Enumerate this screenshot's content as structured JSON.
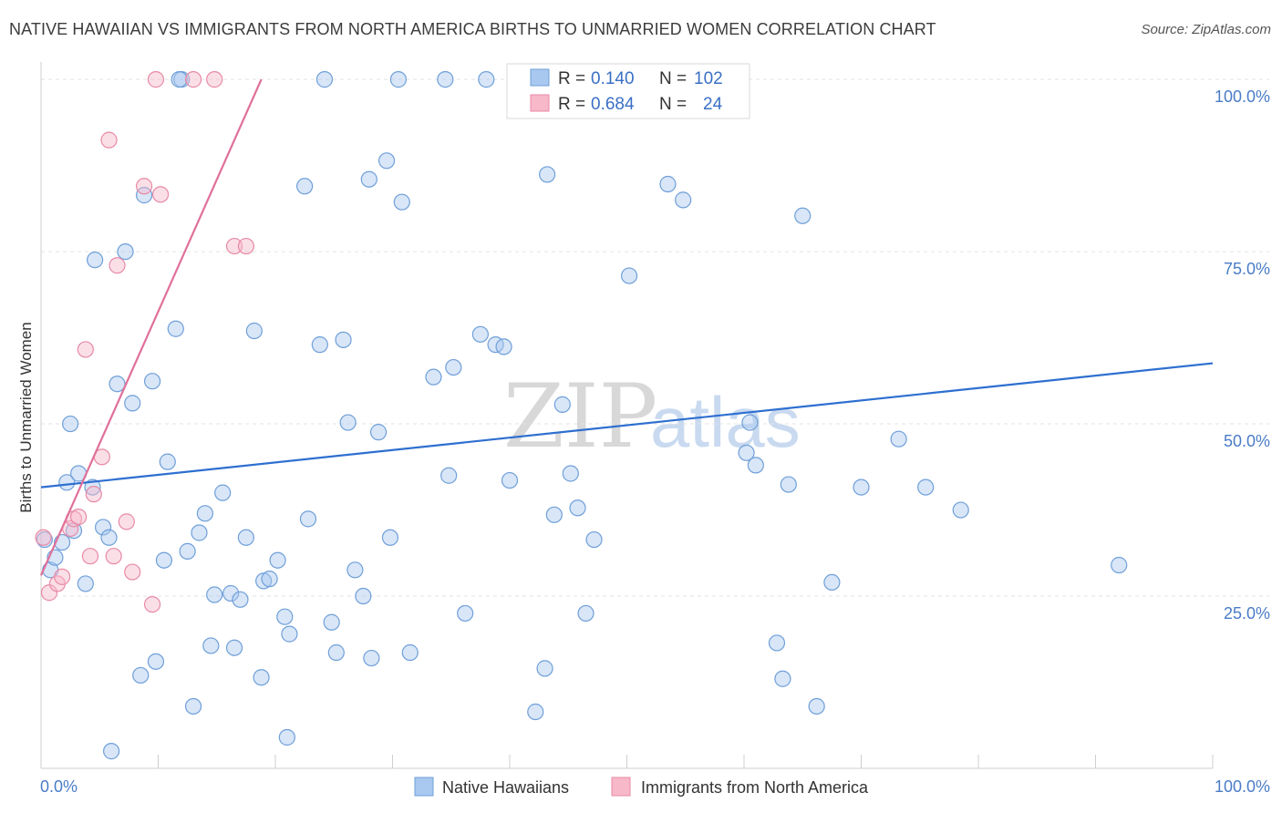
{
  "title": "NATIVE HAWAIIAN VS IMMIGRANTS FROM NORTH AMERICA BIRTHS TO UNMARRIED WOMEN CORRELATION CHART",
  "source": "Source: ZipAtlas.com",
  "watermark": {
    "zip": "ZIP",
    "atlas": "atlas"
  },
  "colors": {
    "blue_fill": "#a8c8f0",
    "blue_stroke": "#6f9fd8",
    "blue_line": "#2e6fd0",
    "pink_fill": "#f7b8c9",
    "pink_stroke": "#e88aa6",
    "pink_line": "#e0709a"
  },
  "legend": {
    "rows": [
      {
        "r_label": "R =",
        "r_value": "0.140",
        "n_label": "N =",
        "n_value": "102"
      },
      {
        "r_label": "R =",
        "r_value": "0.684",
        "n_label": "N =",
        "n_value": "24"
      }
    ]
  },
  "bottom_legend": [
    "Native Hawaiians",
    "Immigrants from North America"
  ],
  "chart_data": {
    "type": "scatter",
    "title": "NATIVE HAWAIIAN VS IMMIGRANTS FROM NORTH AMERICA BIRTHS TO UNMARRIED WOMEN CORRELATION CHART",
    "xlabel": "",
    "ylabel": "Births to Unmarried Women",
    "xlim": [
      0,
      100
    ],
    "ylim": [
      0,
      102
    ],
    "x_tick_labels": [
      "0.0%",
      "100.0%"
    ],
    "y_ticks": [
      25,
      50,
      75,
      100
    ],
    "y_tick_labels": [
      "25.0%",
      "50.0%",
      "75.0%",
      "100.0%"
    ],
    "series": [
      {
        "name": "Native Hawaiians",
        "r": 0.14,
        "n": 102,
        "trend": {
          "x": [
            0,
            100
          ],
          "y": [
            40.8,
            58.8
          ]
        },
        "points": [
          [
            0.3,
            33.2
          ],
          [
            0.8,
            28.8
          ],
          [
            1.2,
            30.6
          ],
          [
            1.8,
            32.8
          ],
          [
            2.2,
            41.5
          ],
          [
            2.8,
            34.5
          ],
          [
            3.2,
            42.8
          ],
          [
            3.8,
            26.8
          ],
          [
            4.4,
            40.8
          ],
          [
            5.3,
            35.0
          ],
          [
            5.8,
            33.5
          ],
          [
            4.6,
            73.8
          ],
          [
            7.2,
            75.0
          ],
          [
            6.5,
            55.8
          ],
          [
            7.8,
            53.0
          ],
          [
            8.8,
            83.2
          ],
          [
            9.5,
            56.2
          ],
          [
            8.5,
            13.5
          ],
          [
            9.8,
            15.5
          ],
          [
            10.5,
            30.2
          ],
          [
            10.8,
            44.5
          ],
          [
            11.5,
            63.8
          ],
          [
            12.0,
            100.0
          ],
          [
            12.5,
            31.5
          ],
          [
            13.0,
            9.0
          ],
          [
            13.5,
            34.2
          ],
          [
            14.0,
            37.0
          ],
          [
            14.5,
            17.8
          ],
          [
            14.8,
            25.2
          ],
          [
            15.5,
            40.0
          ],
          [
            16.2,
            25.4
          ],
          [
            16.5,
            17.5
          ],
          [
            17.0,
            24.5
          ],
          [
            17.5,
            33.5
          ],
          [
            18.2,
            63.5
          ],
          [
            18.8,
            13.2
          ],
          [
            19.0,
            27.2
          ],
          [
            19.5,
            27.5
          ],
          [
            20.2,
            30.2
          ],
          [
            20.8,
            22.0
          ],
          [
            21.2,
            19.5
          ],
          [
            21.0,
            4.5
          ],
          [
            22.5,
            84.5
          ],
          [
            22.8,
            36.2
          ],
          [
            23.8,
            61.5
          ],
          [
            24.2,
            100.0
          ],
          [
            24.8,
            21.2
          ],
          [
            25.2,
            16.8
          ],
          [
            25.8,
            62.2
          ],
          [
            26.2,
            50.2
          ],
          [
            26.8,
            28.8
          ],
          [
            27.5,
            25.0
          ],
          [
            28.0,
            85.5
          ],
          [
            28.2,
            16.0
          ],
          [
            28.8,
            48.8
          ],
          [
            29.5,
            88.2
          ],
          [
            29.8,
            33.5
          ],
          [
            30.5,
            100.0
          ],
          [
            30.8,
            82.2
          ],
          [
            31.5,
            16.8
          ],
          [
            33.5,
            56.8
          ],
          [
            34.5,
            100.0
          ],
          [
            34.8,
            42.5
          ],
          [
            35.2,
            58.2
          ],
          [
            36.2,
            22.5
          ],
          [
            37.5,
            63.0
          ],
          [
            38.0,
            100.0
          ],
          [
            38.8,
            61.5
          ],
          [
            39.5,
            61.2
          ],
          [
            40.0,
            41.8
          ],
          [
            42.0,
            100.0
          ],
          [
            42.2,
            8.2
          ],
          [
            43.0,
            14.5
          ],
          [
            43.2,
            86.2
          ],
          [
            43.8,
            36.8
          ],
          [
            44.5,
            52.8
          ],
          [
            45.2,
            42.8
          ],
          [
            45.8,
            37.8
          ],
          [
            46.5,
            22.5
          ],
          [
            47.2,
            33.2
          ],
          [
            50.2,
            71.5
          ],
          [
            52.2,
            100.0
          ],
          [
            53.5,
            84.8
          ],
          [
            54.8,
            82.5
          ],
          [
            60.2,
            45.8
          ],
          [
            60.5,
            50.2
          ],
          [
            61.0,
            44.0
          ],
          [
            62.8,
            18.2
          ],
          [
            63.3,
            13.0
          ],
          [
            63.8,
            41.2
          ],
          [
            65.0,
            80.2
          ],
          [
            66.2,
            9.0
          ],
          [
            67.5,
            27.0
          ],
          [
            70.0,
            40.8
          ],
          [
            73.2,
            47.8
          ],
          [
            75.5,
            40.8
          ],
          [
            78.5,
            37.5
          ],
          [
            92.0,
            29.5
          ],
          [
            2.5,
            50.0
          ],
          [
            6.0,
            2.5
          ],
          [
            11.8,
            100.0
          ],
          [
            41.0,
            100.0
          ]
        ]
      },
      {
        "name": "Immigrants from North America",
        "r": 0.684,
        "n": 24,
        "trend": {
          "x": [
            0,
            18.8
          ],
          "y": [
            28.0,
            100.0
          ]
        },
        "points": [
          [
            0.2,
            33.5
          ],
          [
            0.7,
            25.5
          ],
          [
            1.4,
            26.8
          ],
          [
            1.8,
            27.8
          ],
          [
            2.5,
            34.8
          ],
          [
            2.8,
            36.2
          ],
          [
            3.2,
            36.5
          ],
          [
            3.8,
            60.8
          ],
          [
            4.2,
            30.8
          ],
          [
            4.5,
            39.8
          ],
          [
            5.2,
            45.2
          ],
          [
            5.8,
            91.2
          ],
          [
            6.2,
            30.8
          ],
          [
            6.5,
            73.0
          ],
          [
            7.3,
            35.8
          ],
          [
            7.8,
            28.5
          ],
          [
            8.8,
            84.5
          ],
          [
            9.5,
            23.8
          ],
          [
            9.8,
            100.0
          ],
          [
            10.2,
            83.3
          ],
          [
            13.0,
            100.0
          ],
          [
            14.8,
            100.0
          ],
          [
            16.5,
            75.8
          ],
          [
            17.5,
            75.8
          ]
        ]
      }
    ]
  }
}
